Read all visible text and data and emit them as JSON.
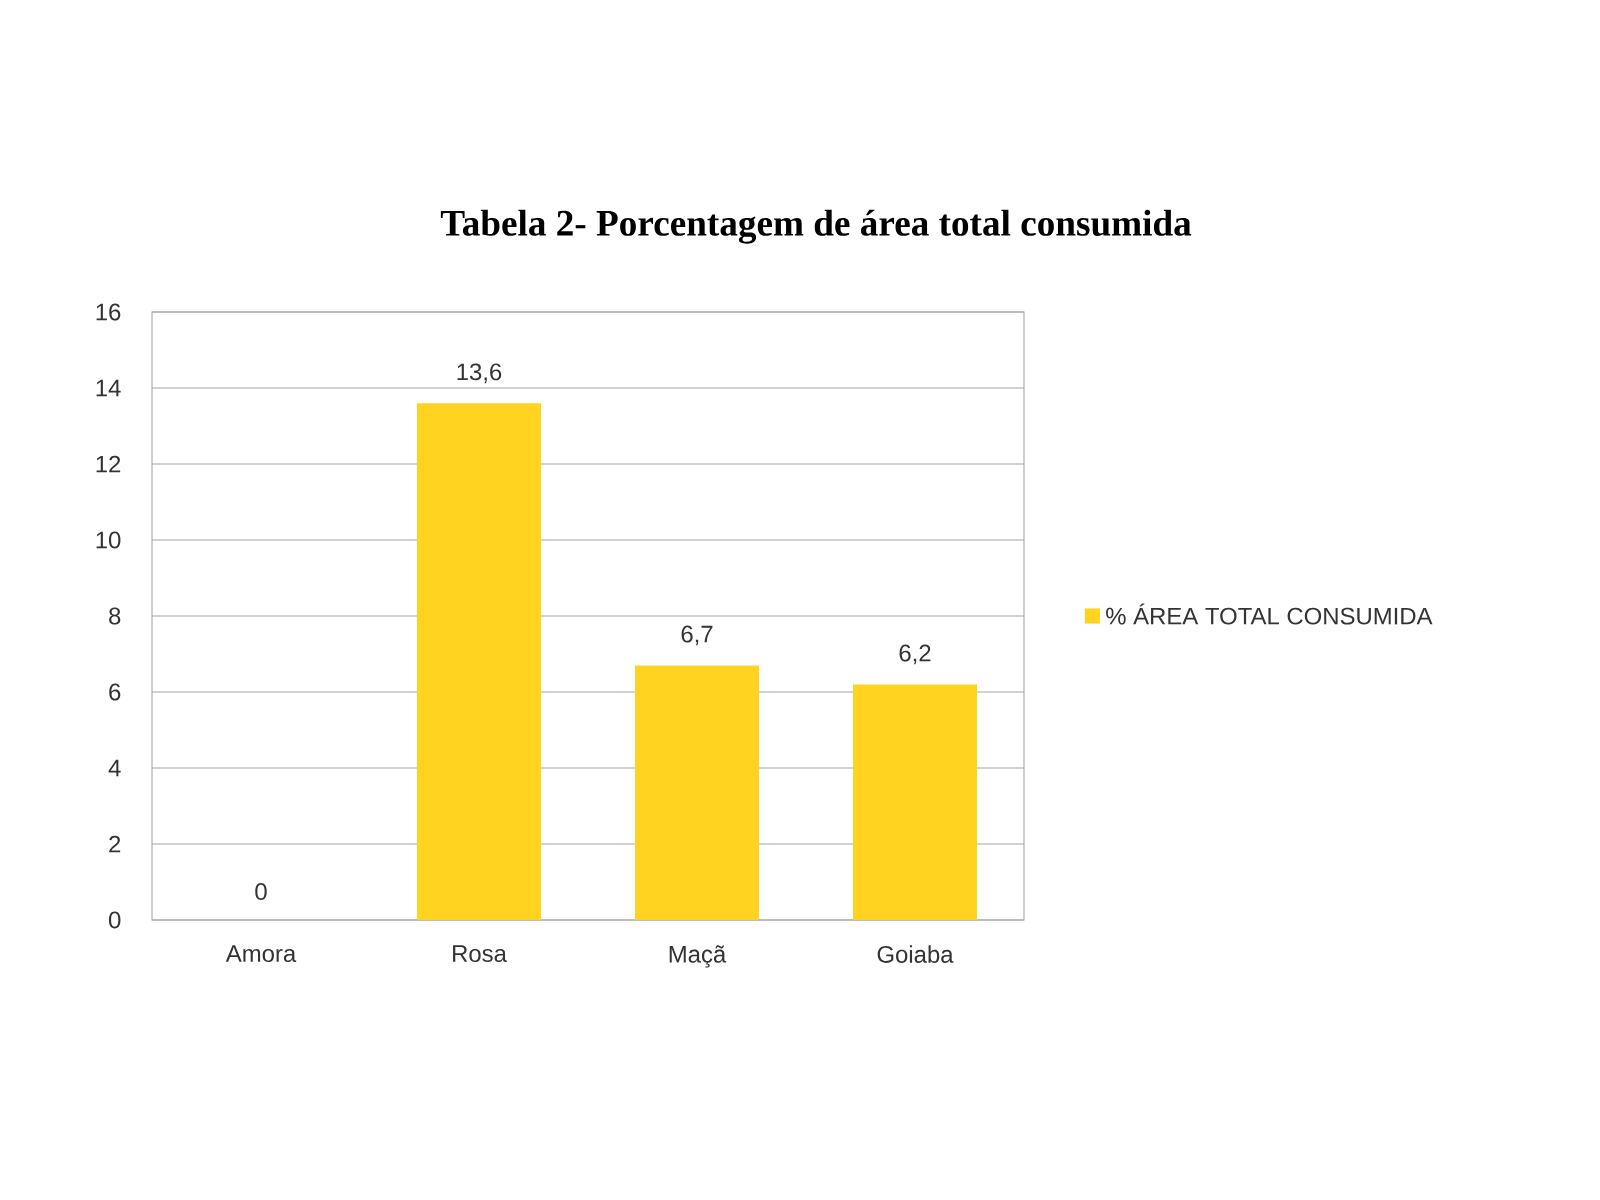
{
  "chart_data": {
    "type": "bar",
    "title": "Tabela 2- Porcentagem  de área total consumida",
    "categories": [
      "Amora",
      "Rosa",
      "Maçã",
      "Goiaba"
    ],
    "series": [
      {
        "name": "% ÁREA TOTAL CONSUMIDA",
        "color": "#ffd320",
        "values": [
          0,
          13.6,
          6.7,
          6.2
        ],
        "value_labels": [
          "0",
          "13,6",
          "6,7",
          "6,2"
        ]
      }
    ],
    "ylim": [
      0,
      16
    ],
    "yticks": [
      0,
      2,
      4,
      6,
      8,
      10,
      12,
      14,
      16
    ],
    "grid": "y",
    "legend": "right"
  }
}
